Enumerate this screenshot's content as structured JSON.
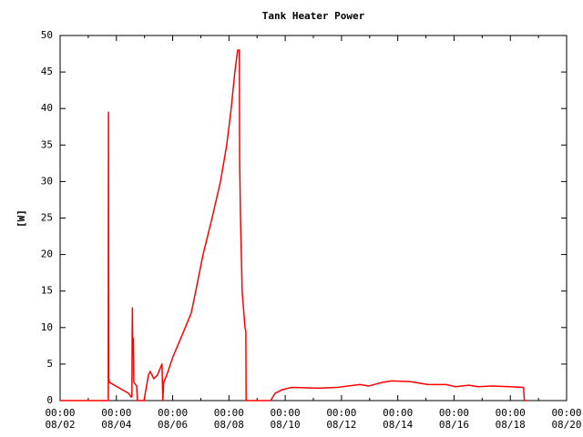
{
  "chart_data": {
    "type": "line",
    "title": "Tank Heater Power",
    "y_label": "[W]",
    "x": [
      2,
      3.71,
      3.72,
      3.73,
      3.75,
      4.43,
      4.52,
      4.55,
      4.56,
      4.57,
      4.58,
      4.6,
      4.62,
      4.72,
      4.75,
      4.98,
      5.14,
      5.2,
      5.33,
      5.46,
      5.62,
      5.65,
      5.68,
      5.79,
      6.01,
      6.34,
      6.66,
      6.82,
      7.08,
      7.4,
      7.7,
      7.92,
      8.08,
      8.21,
      8.31,
      8.37,
      8.38,
      8.41,
      8.47,
      8.57,
      8.6,
      8.61,
      9.48,
      9.64,
      9.9,
      10.22,
      11.19,
      11.84,
      12.65,
      12.97,
      13.46,
      13.78,
      14.43,
      15.07,
      15.72,
      16.05,
      16.53,
      16.85,
      17.34,
      17.99,
      18.47,
      18.5,
      18.6
    ],
    "series": [
      {
        "color": "#ff0000",
        "values": [
          0,
          0,
          39.5,
          3,
          2.5,
          1,
          0.5,
          0.5,
          8.5,
          12.7,
          8.5,
          8.5,
          2.5,
          2,
          0,
          0,
          3.5,
          4,
          3,
          3.5,
          5,
          0,
          2.5,
          3.5,
          6,
          9,
          12,
          15,
          20,
          25,
          30,
          35,
          40,
          45,
          48,
          48,
          33,
          25,
          15,
          10,
          9.5,
          0,
          0,
          1,
          1.5,
          1.8,
          1.7,
          1.8,
          2.2,
          2.0,
          2.5,
          2.7,
          2.6,
          2.2,
          2.2,
          1.9,
          2.1,
          1.9,
          2.0,
          1.9,
          1.8,
          0,
          0
        ]
      }
    ],
    "xlim": [
      2,
      20
    ],
    "xticks": [
      {
        "value": 2,
        "label": [
          "00:00",
          "08/02"
        ]
      },
      {
        "value": 4,
        "label": [
          "00:00",
          "08/04"
        ]
      },
      {
        "value": 6,
        "label": [
          "00:00",
          "08/06"
        ]
      },
      {
        "value": 8,
        "label": [
          "00:00",
          "08/08"
        ]
      },
      {
        "value": 10,
        "label": [
          "00:00",
          "08/10"
        ]
      },
      {
        "value": 12,
        "label": [
          "00:00",
          "08/12"
        ]
      },
      {
        "value": 14,
        "label": [
          "00:00",
          "08/14"
        ]
      },
      {
        "value": 16,
        "label": [
          "00:00",
          "08/16"
        ]
      },
      {
        "value": 18,
        "label": [
          "00:00",
          "08/18"
        ]
      },
      {
        "value": 20,
        "label": [
          "00:00",
          "08/20"
        ]
      }
    ],
    "xminorticks": [
      3,
      5,
      7,
      9,
      11,
      13,
      15,
      17,
      19
    ],
    "ylim": [
      0,
      50
    ],
    "yticks": [
      0,
      5,
      10,
      15,
      20,
      25,
      30,
      35,
      40,
      45,
      50
    ]
  }
}
